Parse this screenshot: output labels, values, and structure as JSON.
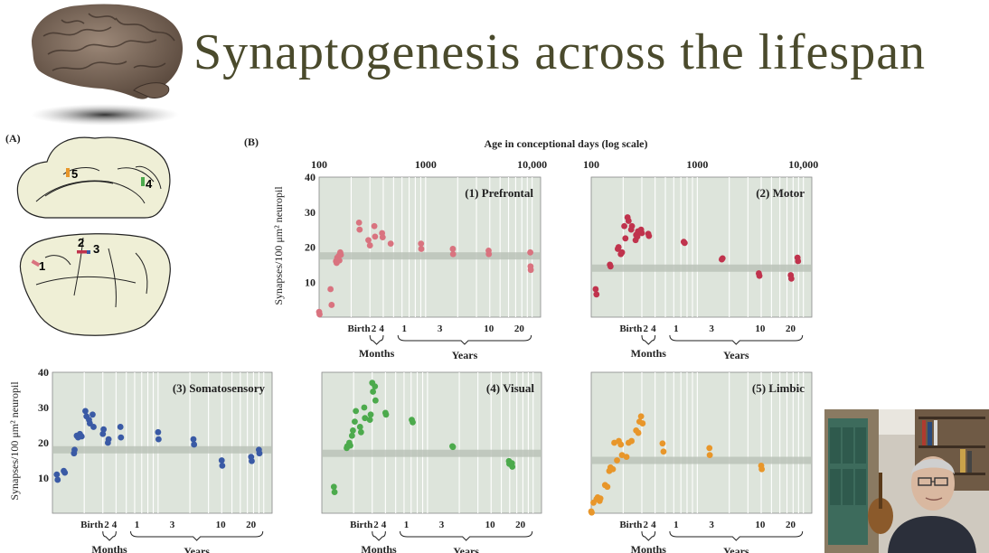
{
  "slide": {
    "title": "Synaptogenesis across the lifespan"
  },
  "panel_a": {
    "label": "(A)",
    "regions": [
      "1",
      "2",
      "3",
      "4",
      "5"
    ],
    "colors": {
      "1": "#d9737f",
      "2": "#c0334d",
      "3": "#3a5aa5",
      "4": "#4caa4c",
      "5": "#e8962a"
    }
  },
  "panel_b": {
    "label": "(B)"
  },
  "chart_data": {
    "type": "scatter",
    "x_scale": "log",
    "x_title": "Age in conceptional days (log scale)",
    "top_ticks": [
      "100",
      "1000",
      "10,000"
    ],
    "ylabel": "Synapses/100 μm² neuropil",
    "ylim": [
      0,
      40
    ],
    "yticks": [
      10,
      20,
      30,
      40
    ],
    "bottom_tick_labels": [
      "Birth",
      "2",
      "4",
      "1",
      "3",
      "10",
      "20"
    ],
    "bottom_group_labels": {
      "months": "Months",
      "years": "Years"
    },
    "panels": [
      {
        "name": "(1) Prefrontal",
        "color": "#d9737f",
        "band": 17.5,
        "x": [
          100,
          101,
          128,
          131,
          144,
          146,
          148,
          151,
          153,
          155,
          158,
          160,
          237,
          240,
          290,
          300,
          330,
          335,
          390,
          395,
          470,
          905,
          910,
          1800,
          1810,
          3900,
          3920,
          9600,
          9650,
          9700
        ],
        "y": [
          1.5,
          0.8,
          8,
          3.5,
          16,
          15.5,
          17,
          16.5,
          17.5,
          16.2,
          18.5,
          17.8,
          27,
          25,
          22,
          20.5,
          26,
          23,
          24,
          22.8,
          21,
          21,
          19.5,
          19.5,
          18,
          19,
          18,
          18.5,
          14.5,
          13.5
        ]
      },
      {
        "name": "(2) Motor",
        "color": "#c0334d",
        "band": 14,
        "x": [
          110,
          112,
          150,
          152,
          178,
          181,
          190,
          195,
          205,
          210,
          220,
          225,
          238,
          242,
          262,
          265,
          272,
          276,
          295,
          300,
          345,
          350,
          745,
          760,
          1700,
          1730,
          3800,
          3850,
          7600,
          7700,
          8800,
          8900
        ],
        "y": [
          8,
          6.5,
          15,
          14.5,
          19.5,
          20,
          18,
          18.5,
          26,
          22.5,
          28.5,
          27.5,
          25,
          26,
          22,
          23.5,
          23,
          24.5,
          25,
          24,
          23.8,
          23.2,
          21.5,
          21.2,
          16.5,
          16.8,
          12.5,
          11.8,
          12,
          11,
          17,
          16
        ]
      },
      {
        "name": "(3) Somatosensory",
        "color": "#3a5aa5",
        "band": 18,
        "x": [
          110,
          112,
          128,
          131,
          160,
          162,
          170,
          175,
          182,
          189,
          205,
          210,
          222,
          226,
          240,
          245,
          300,
          305,
          335,
          340,
          440,
          445,
          1000,
          1010,
          2160,
          2190,
          4000,
          4050,
          7600,
          7700,
          9000,
          9100
        ],
        "y": [
          11,
          9.5,
          12,
          11.5,
          17,
          18,
          22,
          21.5,
          22.5,
          21.8,
          29,
          27.5,
          26.5,
          25.5,
          28,
          24.5,
          22.5,
          23.8,
          20,
          21,
          24.5,
          21.5,
          23,
          21,
          21,
          19.5,
          15,
          13.5,
          16,
          14.8,
          18,
          17
        ]
      },
      {
        "name": "(4) Visual",
        "color": "#4caa4c",
        "band": 17,
        "x": [
          130,
          132,
          172,
          174,
          182,
          186,
          193,
          197,
          205,
          210,
          230,
          235,
          252,
          256,
          285,
          290,
          300,
          305,
          318,
          322,
          400,
          405,
          710,
          725,
          1720,
          1740,
          5900,
          5950,
          6300,
          6350
        ],
        "y": [
          7.5,
          6,
          18.5,
          19,
          20,
          19.2,
          22,
          23.5,
          26,
          29,
          24.5,
          23,
          30,
          27,
          26.5,
          28,
          37,
          34.5,
          36,
          32,
          28.5,
          28,
          26.5,
          25.8,
          19,
          18.8,
          14.8,
          14,
          14.2,
          13.2
        ]
      },
      {
        "name": "(5) Limbic",
        "color": "#e8962a",
        "band": 15,
        "x": [
          100,
          101,
          105,
          112,
          115,
          120,
          122,
          135,
          142,
          148,
          152,
          160,
          165,
          175,
          182,
          190,
          195,
          215,
          225,
          240,
          265,
          278,
          285,
          295,
          305,
          470,
          480,
          1300,
          1310,
          4000,
          4050
        ],
        "y": [
          0.5,
          0.2,
          3,
          4,
          4.5,
          3.5,
          4.2,
          8,
          7.5,
          12,
          13,
          12.5,
          20,
          15,
          20.5,
          19.5,
          16.5,
          16,
          20,
          20.5,
          23.5,
          22.8,
          26,
          27.5,
          25.5,
          19.8,
          17.5,
          18.5,
          16.5,
          13.5,
          12.5
        ]
      }
    ]
  }
}
